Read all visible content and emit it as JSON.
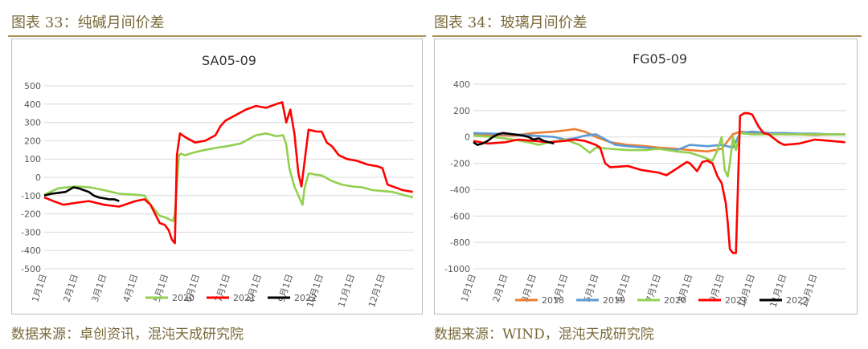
{
  "left": {
    "caption": "图表 33：纯碱月间价差",
    "source": "数据来源：卓创资讯，混沌天成研究院"
  },
  "right": {
    "caption": "图表 34：玻璃月间价差",
    "source": "数据来源：WIND，混沌天成研究院"
  },
  "colors": {
    "2018": "#ed7d31",
    "2019": "#5b9bd5",
    "2020": "#92d050",
    "2021": "#ff0000",
    "2022": "#000000"
  },
  "chart_data": [
    {
      "type": "line",
      "title": "SA05-09",
      "x_ticks": [
        "1月1日",
        "2月1日",
        "3月1日",
        "4月1日",
        "5月1日",
        "6月1日",
        "7月1日",
        "8月1日",
        "9月1日",
        "10月1日",
        "11月1日",
        "12月1日"
      ],
      "y_ticks": [
        500,
        400,
        300,
        200,
        100,
        0,
        -100,
        -200,
        -300,
        -400,
        -500
      ],
      "ylim": [
        -500,
        500
      ],
      "legend_position": "bottom",
      "series": [
        {
          "name": "2020",
          "x": [
            1,
            15,
            32,
            46,
            60,
            75,
            91,
            100,
            106,
            115,
            121,
            128,
            130,
            134,
            136,
            140,
            145,
            152,
            160,
            175,
            182,
            195,
            210,
            220,
            230,
            237,
            240,
            243,
            248,
            252,
            256,
            258,
            262,
            265,
            268,
            275,
            285,
            295,
            305,
            315,
            325,
            335,
            345,
            355,
            365
          ],
          "y": [
            -95,
            -60,
            -50,
            -55,
            -70,
            -90,
            -95,
            -100,
            -150,
            -210,
            -220,
            -240,
            -200,
            120,
            130,
            120,
            130,
            140,
            150,
            165,
            170,
            185,
            230,
            240,
            225,
            230,
            180,
            50,
            -50,
            -100,
            -150,
            -60,
            20,
            20,
            15,
            10,
            -20,
            -40,
            -50,
            -55,
            -70,
            -75,
            -80,
            -95,
            -110
          ]
        },
        {
          "name": "2021",
          "x": [
            1,
            10,
            20,
            32,
            45,
            60,
            75,
            91,
            100,
            106,
            115,
            120,
            124,
            127,
            130,
            132,
            135,
            140,
            150,
            160,
            170,
            175,
            180,
            190,
            200,
            210,
            220,
            230,
            236,
            240,
            244,
            248,
            250,
            252,
            255,
            262,
            270,
            275,
            280,
            285,
            292,
            300,
            310,
            320,
            330,
            335,
            340,
            350,
            355,
            365
          ],
          "y": [
            -110,
            -130,
            -150,
            -140,
            -130,
            -150,
            -160,
            -130,
            -120,
            -150,
            -250,
            -260,
            -290,
            -340,
            -360,
            120,
            240,
            220,
            190,
            200,
            230,
            280,
            310,
            340,
            370,
            390,
            380,
            400,
            410,
            300,
            370,
            240,
            130,
            20,
            -50,
            260,
            250,
            250,
            190,
            170,
            120,
            100,
            90,
            70,
            60,
            50,
            -40,
            -60,
            -70,
            -80
          ]
        },
        {
          "name": "2022",
          "x": [
            1,
            8,
            15,
            22,
            30,
            35,
            40,
            45,
            50,
            55,
            60,
            65,
            70,
            75
          ],
          "y": [
            -100,
            -90,
            -85,
            -80,
            -55,
            -60,
            -70,
            -80,
            -100,
            -110,
            -115,
            -120,
            -120,
            -130
          ]
        }
      ]
    },
    {
      "type": "line",
      "title": "FG05-09",
      "x_ticks": [
        "1月1日",
        "2月1日",
        "3月1日",
        "4月1日",
        "5月1日",
        "6月1日",
        "7月1日",
        "8月1日",
        "9月1日",
        "10月1日",
        "11月1日",
        "12月1日"
      ],
      "y_ticks": [
        400,
        200,
        0,
        -200,
        -400,
        -600,
        -800,
        -1000
      ],
      "ylim": [
        -1000,
        400
      ],
      "legend_position": "bottom",
      "series": [
        {
          "name": "2018",
          "x": [
            1,
            20,
            40,
            60,
            80,
            91,
            100,
            110,
            121,
            135,
            152,
            170,
            182,
            200,
            213,
            230,
            244,
            255,
            262,
            274,
            290,
            305,
            320,
            335,
            350,
            365
          ],
          "y": [
            20,
            15,
            10,
            30,
            40,
            50,
            60,
            40,
            0,
            -40,
            -60,
            -70,
            -80,
            -90,
            -100,
            -110,
            -90,
            20,
            40,
            30,
            30,
            20,
            20,
            15,
            20,
            20
          ]
        },
        {
          "name": "2019",
          "x": [
            1,
            20,
            40,
            60,
            80,
            91,
            100,
            110,
            121,
            140,
            152,
            170,
            182,
            200,
            213,
            230,
            244,
            255,
            262,
            274,
            290,
            305,
            320,
            335,
            350,
            365
          ],
          "y": [
            30,
            25,
            20,
            10,
            0,
            -20,
            -10,
            10,
            20,
            -60,
            -70,
            -80,
            -90,
            -100,
            -60,
            -70,
            -60,
            -80,
            30,
            40,
            30,
            30,
            25,
            25,
            20,
            20
          ]
        },
        {
          "name": "2020",
          "x": [
            1,
            20,
            40,
            55,
            65,
            75,
            91,
            105,
            115,
            121,
            135,
            152,
            170,
            182,
            200,
            213,
            225,
            235,
            240,
            244,
            247,
            250,
            252,
            255,
            258,
            262,
            274,
            290,
            305,
            320,
            335,
            350,
            365
          ],
          "y": [
            10,
            0,
            -20,
            -40,
            -60,
            -40,
            -20,
            -60,
            -120,
            -80,
            -90,
            -100,
            -100,
            -90,
            -110,
            -120,
            -150,
            -180,
            -100,
            0,
            -250,
            -300,
            -200,
            0,
            -100,
            30,
            20,
            20,
            20,
            20,
            20,
            20,
            20
          ]
        },
        {
          "name": "2021",
          "x": [
            1,
            15,
            32,
            45,
            60,
            75,
            91,
            100,
            110,
            121,
            125,
            130,
            135,
            152,
            165,
            182,
            190,
            200,
            210,
            213,
            220,
            225,
            230,
            235,
            240,
            244,
            248,
            250,
            252,
            255,
            258,
            262,
            266,
            270,
            274,
            280,
            285,
            290,
            300,
            305,
            320,
            335,
            350,
            365
          ],
          "y": [
            -30,
            -50,
            -40,
            -20,
            -30,
            -40,
            -30,
            -20,
            -30,
            -60,
            -80,
            -200,
            -230,
            -220,
            -250,
            -270,
            -290,
            -240,
            -190,
            -200,
            -260,
            -190,
            -180,
            -200,
            -300,
            -350,
            -500,
            -650,
            -850,
            -880,
            -880,
            160,
            180,
            180,
            170,
            80,
            30,
            20,
            -40,
            -60,
            -50,
            -20,
            -30,
            -40
          ]
        },
        {
          "name": "2022",
          "x": [
            1,
            5,
            10,
            15,
            20,
            25,
            30,
            35,
            40,
            45,
            50,
            55,
            60,
            65,
            70,
            75,
            80
          ],
          "y": [
            -40,
            -60,
            -50,
            -30,
            0,
            20,
            30,
            25,
            20,
            15,
            10,
            0,
            -20,
            -10,
            -30,
            -40,
            -50
          ]
        }
      ]
    }
  ]
}
